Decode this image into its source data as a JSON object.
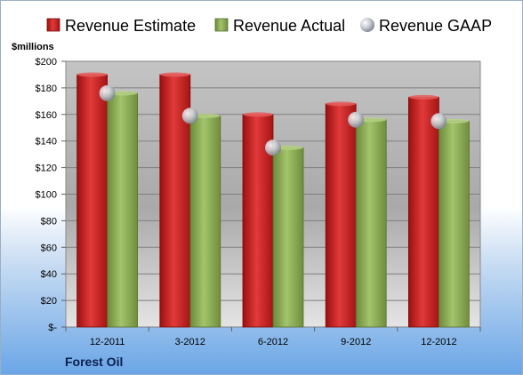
{
  "chart_data": {
    "type": "bar",
    "unit_label": "$millions",
    "company": "Forest Oil",
    "categories": [
      "12-2011",
      "3-2012",
      "6-2012",
      "9-2012",
      "12-2012"
    ],
    "series": [
      {
        "name": "Revenue Estimate",
        "type": "bar",
        "color": "#d42020",
        "values": [
          190,
          190,
          160,
          168,
          173
        ]
      },
      {
        "name": "Revenue Actual",
        "type": "bar",
        "color": "#8fb058",
        "values": [
          176,
          159,
          135,
          156,
          155
        ]
      },
      {
        "name": "Revenue GAAP",
        "type": "marker",
        "color": "#c8ccd4",
        "values": [
          176,
          159,
          135,
          156,
          155
        ]
      }
    ],
    "y_ticks": [
      "$-",
      "$20",
      "$40",
      "$60",
      "$80",
      "$100",
      "$120",
      "$140",
      "$160",
      "$180",
      "$200"
    ],
    "ylim": [
      0,
      200
    ],
    "legend_position": "top",
    "grid": true
  }
}
